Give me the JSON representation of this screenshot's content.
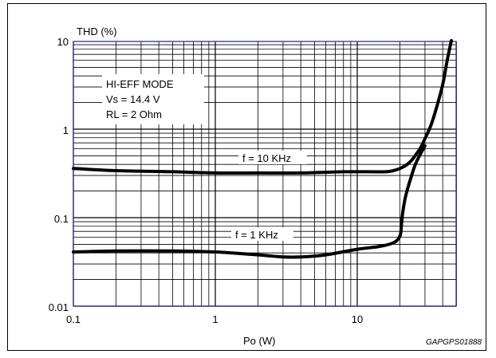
{
  "chart_data": {
    "type": "line",
    "title": "",
    "ylabel": "THD (%)",
    "xlabel": "Po (W)",
    "x_scale": "log",
    "y_scale": "log",
    "xlim": [
      0.1,
      50
    ],
    "ylim": [
      0.01,
      10
    ],
    "x_ticks": [
      "0.1",
      "1",
      "10"
    ],
    "y_ticks": [
      "10",
      "1",
      "0.1",
      "0.01"
    ],
    "grid": true,
    "conditions": [
      "HI-EFF MODE",
      "Vs = 14.4 V",
      "RL = 2 Ohm"
    ],
    "series": [
      {
        "name": "f = 10 KHz",
        "x": [
          0.1,
          0.2,
          0.5,
          1,
          2,
          4,
          8,
          12,
          16,
          18,
          20,
          22,
          24,
          26,
          28,
          30,
          33,
          36,
          40,
          43,
          46
        ],
        "y": [
          0.36,
          0.34,
          0.33,
          0.32,
          0.32,
          0.32,
          0.33,
          0.33,
          0.33,
          0.34,
          0.36,
          0.39,
          0.44,
          0.52,
          0.62,
          0.78,
          1.1,
          1.7,
          3.2,
          6.0,
          10.0
        ]
      },
      {
        "name": "f = 1 KHz",
        "x": [
          0.1,
          0.2,
          0.5,
          1,
          2,
          3,
          4,
          6,
          10,
          14,
          18,
          20,
          20.5,
          21,
          22,
          24,
          26,
          30
        ],
        "y": [
          0.041,
          0.042,
          0.042,
          0.041,
          0.038,
          0.036,
          0.036,
          0.038,
          0.044,
          0.047,
          0.052,
          0.062,
          0.085,
          0.12,
          0.18,
          0.29,
          0.42,
          0.65
        ]
      }
    ],
    "annotations": [
      "f = 10 KHz",
      "f = 1 KHz"
    ]
  },
  "colors": {
    "grid": "#000000",
    "axis_frame": "#1a237e",
    "curve": "#000000"
  },
  "reference_code": "GAPGPS01888"
}
